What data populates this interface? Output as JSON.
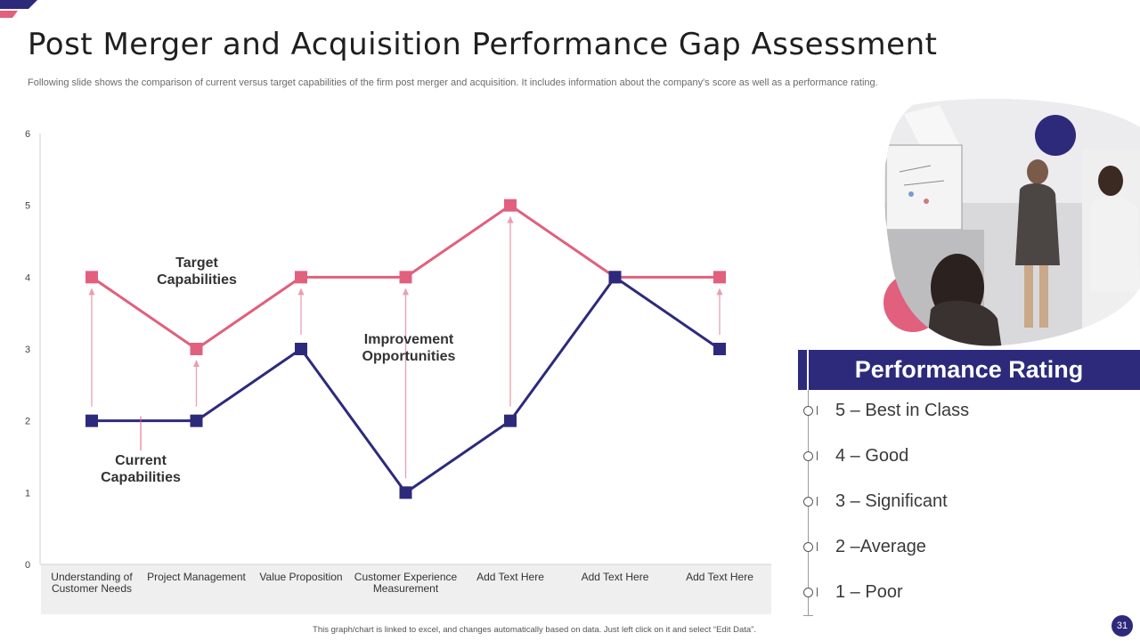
{
  "slide": {
    "title": "Post Merger and Acquisition Performance Gap Assessment",
    "subtitle": "Following slide shows the comparison of current versus target capabilities of the firm post merger and acquisition. It includes information about the company's score as well as a performance rating.",
    "footnote": "This graph/chart is linked to excel, and changes automatically based on data. Just left click on it and select “Edit Data”.",
    "page_number": "31"
  },
  "colors": {
    "navy": "#2d2a7c",
    "pink": "#e0607e",
    "arrow": "#e8a0b0"
  },
  "chart_data": {
    "type": "line",
    "categories": [
      [
        "Understanding of",
        "Customer Needs"
      ],
      [
        "Project Management"
      ],
      [
        "Value Proposition"
      ],
      [
        "Customer Experience",
        "Measurement"
      ],
      [
        "Add Text Here"
      ],
      [
        "Add Text Here"
      ],
      [
        "Add Text Here"
      ]
    ],
    "series": [
      {
        "name": "Target Capabilities",
        "color": "#e0607e",
        "values": [
          4,
          3,
          4,
          4,
          5,
          4,
          4
        ]
      },
      {
        "name": "Current Capabilities",
        "color": "#2d2a7c",
        "values": [
          2,
          2,
          3,
          1,
          2,
          4,
          3
        ]
      }
    ],
    "ylim": [
      0,
      6
    ],
    "yticks": [
      0,
      1,
      2,
      3,
      4,
      5,
      6
    ],
    "annotations": {
      "target": [
        "Target",
        "Capabilities"
      ],
      "current": [
        "Current",
        "Capabilities"
      ],
      "improvement": [
        "Improvement",
        "Opportunities"
      ]
    },
    "gridlines": false,
    "legend": "none"
  },
  "rating": {
    "title": "Performance Rating",
    "items": [
      "5 – Best in Class",
      "4 – Good",
      "3 – Significant",
      "2 –Average",
      "1 – Poor"
    ]
  }
}
